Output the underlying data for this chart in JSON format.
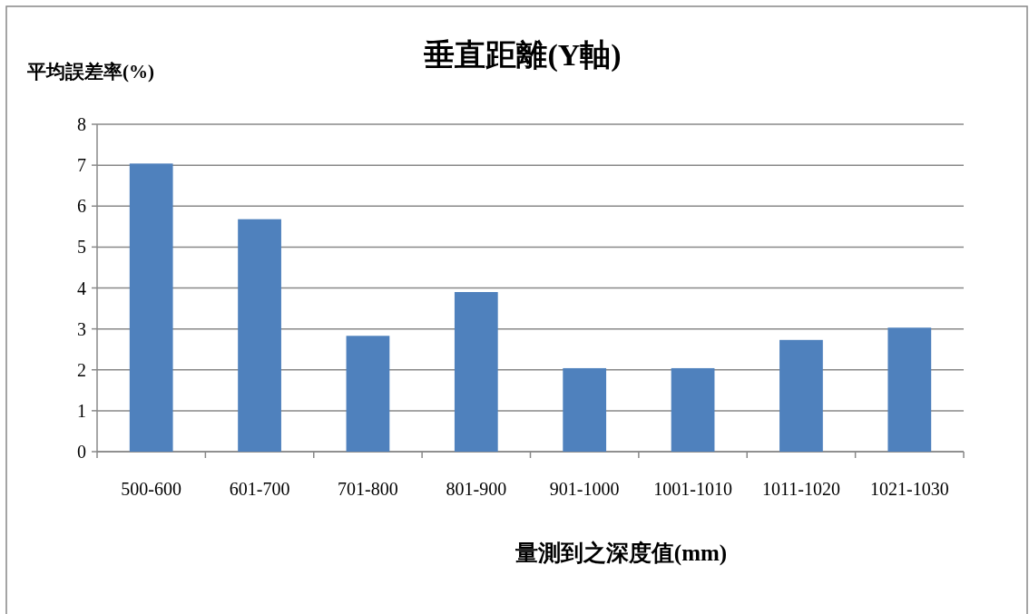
{
  "chart_data": {
    "type": "bar",
    "title": "垂直距離(Y軸)",
    "ylabel": "平均誤差率(%)",
    "xlabel": "量測到之深度值(mm)",
    "categories": [
      "500-600",
      "601-700",
      "701-800",
      "801-900",
      "901-1000",
      "1001-1010",
      "1011-1020",
      "1021-1030"
    ],
    "values": [
      7.04,
      5.68,
      2.83,
      3.9,
      2.04,
      2.04,
      2.73,
      3.03
    ],
    "color": "#4f81bd",
    "ylim": [
      0,
      8
    ],
    "yticks": [
      0,
      1,
      2,
      3,
      4,
      5,
      6,
      7,
      8
    ],
    "grid": "y"
  }
}
